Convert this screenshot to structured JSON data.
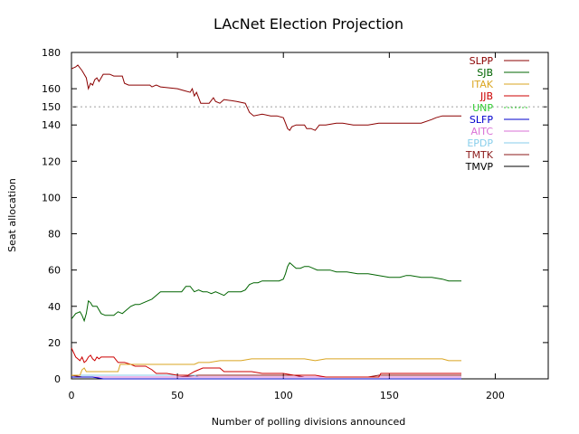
{
  "chart_data": {
    "type": "line",
    "title": "LAcNet Election Projection",
    "xlabel": "Number of polling divisions announced",
    "ylabel": "Seat allocation",
    "xlim": [
      0,
      225
    ],
    "ylim": [
      0,
      180
    ],
    "xticks": [
      0,
      50,
      100,
      150,
      200
    ],
    "yticks": [
      0,
      20,
      40,
      60,
      80,
      100,
      120,
      140,
      150,
      160,
      180
    ],
    "grid": false,
    "legend_position": "top-right",
    "reference_line": {
      "name": "UNP",
      "y": 150,
      "style": "dotted",
      "color": "#a0a0a0"
    },
    "series": [
      {
        "name": "SLPP",
        "color": "#8b0000",
        "points": [
          [
            0,
            171
          ],
          [
            2,
            172
          ],
          [
            3,
            173
          ],
          [
            5,
            170
          ],
          [
            7,
            166
          ],
          [
            8,
            160
          ],
          [
            9,
            163
          ],
          [
            10,
            162
          ],
          [
            11,
            165
          ],
          [
            12,
            166
          ],
          [
            13,
            164
          ],
          [
            14,
            166
          ],
          [
            15,
            168
          ],
          [
            18,
            168
          ],
          [
            20,
            167
          ],
          [
            24,
            167
          ],
          [
            25,
            163
          ],
          [
            27,
            162
          ],
          [
            37,
            162
          ],
          [
            38,
            161
          ],
          [
            40,
            162
          ],
          [
            42,
            161
          ],
          [
            50,
            160
          ],
          [
            53,
            159
          ],
          [
            56,
            158
          ],
          [
            57,
            160
          ],
          [
            58,
            156
          ],
          [
            59,
            158
          ],
          [
            61,
            152
          ],
          [
            65,
            152
          ],
          [
            67,
            155
          ],
          [
            68,
            153
          ],
          [
            70,
            152
          ],
          [
            72,
            154
          ],
          [
            78,
            153
          ],
          [
            82,
            152
          ],
          [
            84,
            147
          ],
          [
            86,
            145
          ],
          [
            90,
            146
          ],
          [
            94,
            145
          ],
          [
            97,
            145
          ],
          [
            100,
            144
          ],
          [
            101,
            141
          ],
          [
            102,
            138
          ],
          [
            103,
            137
          ],
          [
            104,
            139
          ],
          [
            106,
            140
          ],
          [
            108,
            140
          ],
          [
            110,
            140
          ],
          [
            111,
            138
          ],
          [
            113,
            138
          ],
          [
            115,
            137
          ],
          [
            117,
            140
          ],
          [
            120,
            140
          ],
          [
            125,
            141
          ],
          [
            128,
            141
          ],
          [
            133,
            140
          ],
          [
            135,
            140
          ],
          [
            140,
            140
          ],
          [
            145,
            141
          ],
          [
            150,
            141
          ],
          [
            160,
            141
          ],
          [
            165,
            141
          ],
          [
            170,
            143
          ],
          [
            172,
            144
          ],
          [
            175,
            145
          ],
          [
            180,
            145
          ],
          [
            184,
            145
          ]
        ]
      },
      {
        "name": "SJB",
        "color": "#006400",
        "points": [
          [
            0,
            33
          ],
          [
            2,
            36
          ],
          [
            4,
            37
          ],
          [
            5,
            35
          ],
          [
            6,
            32
          ],
          [
            7,
            36
          ],
          [
            8,
            43
          ],
          [
            9,
            42
          ],
          [
            10,
            40
          ],
          [
            12,
            40
          ],
          [
            14,
            36
          ],
          [
            16,
            35
          ],
          [
            18,
            35
          ],
          [
            20,
            35
          ],
          [
            22,
            37
          ],
          [
            24,
            36
          ],
          [
            26,
            38
          ],
          [
            28,
            40
          ],
          [
            30,
            41
          ],
          [
            32,
            41
          ],
          [
            34,
            42
          ],
          [
            36,
            43
          ],
          [
            38,
            44
          ],
          [
            40,
            46
          ],
          [
            42,
            48
          ],
          [
            45,
            48
          ],
          [
            48,
            48
          ],
          [
            50,
            48
          ],
          [
            52,
            48
          ],
          [
            54,
            51
          ],
          [
            56,
            51
          ],
          [
            58,
            48
          ],
          [
            60,
            49
          ],
          [
            62,
            48
          ],
          [
            64,
            48
          ],
          [
            66,
            47
          ],
          [
            68,
            48
          ],
          [
            70,
            47
          ],
          [
            72,
            46
          ],
          [
            74,
            48
          ],
          [
            76,
            48
          ],
          [
            78,
            48
          ],
          [
            80,
            48
          ],
          [
            82,
            49
          ],
          [
            84,
            52
          ],
          [
            86,
            53
          ],
          [
            88,
            53
          ],
          [
            90,
            54
          ],
          [
            93,
            54
          ],
          [
            95,
            54
          ],
          [
            98,
            54
          ],
          [
            100,
            55
          ],
          [
            101,
            58
          ],
          [
            102,
            62
          ],
          [
            103,
            64
          ],
          [
            104,
            63
          ],
          [
            105,
            62
          ],
          [
            106,
            61
          ],
          [
            108,
            61
          ],
          [
            110,
            62
          ],
          [
            112,
            62
          ],
          [
            114,
            61
          ],
          [
            116,
            60
          ],
          [
            120,
            60
          ],
          [
            122,
            60
          ],
          [
            125,
            59
          ],
          [
            130,
            59
          ],
          [
            135,
            58
          ],
          [
            140,
            58
          ],
          [
            145,
            57
          ],
          [
            150,
            56
          ],
          [
            155,
            56
          ],
          [
            158,
            57
          ],
          [
            160,
            57
          ],
          [
            165,
            56
          ],
          [
            170,
            56
          ],
          [
            175,
            55
          ],
          [
            178,
            54
          ],
          [
            182,
            54
          ],
          [
            184,
            54
          ]
        ]
      },
      {
        "name": "ITAK",
        "color": "#daa520",
        "points": [
          [
            0,
            2
          ],
          [
            4,
            2
          ],
          [
            5,
            5
          ],
          [
            6,
            6
          ],
          [
            7,
            4
          ],
          [
            10,
            4
          ],
          [
            15,
            4
          ],
          [
            20,
            4
          ],
          [
            22,
            4
          ],
          [
            23,
            8
          ],
          [
            25,
            8
          ],
          [
            30,
            8
          ],
          [
            35,
            8
          ],
          [
            40,
            8
          ],
          [
            45,
            8
          ],
          [
            50,
            8
          ],
          [
            58,
            8
          ],
          [
            60,
            9
          ],
          [
            65,
            9
          ],
          [
            70,
            10
          ],
          [
            75,
            10
          ],
          [
            80,
            10
          ],
          [
            85,
            11
          ],
          [
            90,
            11
          ],
          [
            95,
            11
          ],
          [
            100,
            11
          ],
          [
            105,
            11
          ],
          [
            110,
            11
          ],
          [
            115,
            10
          ],
          [
            120,
            11
          ],
          [
            125,
            11
          ],
          [
            130,
            11
          ],
          [
            140,
            11
          ],
          [
            150,
            11
          ],
          [
            160,
            11
          ],
          [
            170,
            11
          ],
          [
            175,
            11
          ],
          [
            178,
            10
          ],
          [
            184,
            10
          ]
        ]
      },
      {
        "name": "JJB",
        "color": "#cc0000",
        "points": [
          [
            0,
            17
          ],
          [
            2,
            12
          ],
          [
            4,
            10
          ],
          [
            5,
            12
          ],
          [
            6,
            9
          ],
          [
            7,
            10
          ],
          [
            8,
            12
          ],
          [
            9,
            13
          ],
          [
            10,
            11
          ],
          [
            11,
            10
          ],
          [
            12,
            12
          ],
          [
            13,
            11
          ],
          [
            14,
            12
          ],
          [
            15,
            12
          ],
          [
            20,
            12
          ],
          [
            22,
            9
          ],
          [
            25,
            9
          ],
          [
            28,
            8
          ],
          [
            30,
            7
          ],
          [
            35,
            7
          ],
          [
            38,
            5
          ],
          [
            40,
            3
          ],
          [
            45,
            3
          ],
          [
            50,
            2
          ],
          [
            55,
            2
          ],
          [
            58,
            4
          ],
          [
            60,
            5
          ],
          [
            62,
            6
          ],
          [
            65,
            6
          ],
          [
            70,
            6
          ],
          [
            72,
            4
          ],
          [
            75,
            4
          ],
          [
            80,
            4
          ],
          [
            85,
            4
          ],
          [
            90,
            3
          ],
          [
            95,
            3
          ],
          [
            100,
            3
          ],
          [
            105,
            2
          ],
          [
            110,
            2
          ],
          [
            115,
            2
          ],
          [
            120,
            1
          ],
          [
            130,
            1
          ],
          [
            140,
            1
          ],
          [
            145,
            1
          ],
          [
            146,
            3
          ],
          [
            150,
            3
          ],
          [
            155,
            3
          ],
          [
            160,
            3
          ],
          [
            165,
            3
          ],
          [
            170,
            3
          ],
          [
            175,
            3
          ],
          [
            180,
            3
          ],
          [
            184,
            3
          ]
        ]
      },
      {
        "name": "SLFP",
        "color": "#0000cd",
        "points": [
          [
            0,
            1
          ],
          [
            5,
            1
          ],
          [
            10,
            1
          ],
          [
            15,
            0
          ],
          [
            40,
            0
          ],
          [
            45,
            0
          ],
          [
            60,
            0
          ],
          [
            100,
            0
          ],
          [
            150,
            0
          ],
          [
            184,
            0
          ]
        ]
      },
      {
        "name": "AITC",
        "color": "#da70d6",
        "points": [
          [
            0,
            1
          ],
          [
            10,
            1
          ],
          [
            20,
            1
          ],
          [
            30,
            1
          ],
          [
            40,
            1
          ],
          [
            50,
            1
          ],
          [
            60,
            1
          ],
          [
            70,
            1
          ],
          [
            80,
            1
          ],
          [
            90,
            1
          ],
          [
            100,
            1
          ],
          [
            110,
            1
          ],
          [
            120,
            1
          ],
          [
            130,
            1
          ],
          [
            140,
            1
          ],
          [
            150,
            1
          ],
          [
            160,
            1
          ],
          [
            170,
            1
          ],
          [
            184,
            1
          ]
        ]
      },
      {
        "name": "EPDP",
        "color": "#87ceeb",
        "points": [
          [
            0,
            2
          ],
          [
            10,
            2
          ],
          [
            20,
            2
          ],
          [
            30,
            2
          ],
          [
            40,
            2
          ],
          [
            50,
            2
          ],
          [
            58,
            2
          ],
          [
            60,
            1
          ],
          [
            70,
            1
          ],
          [
            80,
            1
          ],
          [
            90,
            1
          ],
          [
            100,
            1
          ],
          [
            110,
            1
          ],
          [
            120,
            1
          ],
          [
            130,
            1
          ],
          [
            140,
            1
          ],
          [
            150,
            1
          ],
          [
            160,
            1
          ],
          [
            170,
            1
          ],
          [
            184,
            1
          ]
        ]
      },
      {
        "name": "TMTK",
        "color": "#8b1a1a",
        "points": [
          [
            0,
            2
          ],
          [
            5,
            1
          ],
          [
            10,
            1
          ],
          [
            20,
            1
          ],
          [
            30,
            1
          ],
          [
            40,
            1
          ],
          [
            50,
            1
          ],
          [
            60,
            2
          ],
          [
            70,
            2
          ],
          [
            80,
            2
          ],
          [
            90,
            2
          ],
          [
            100,
            2
          ],
          [
            105,
            2
          ],
          [
            110,
            1
          ],
          [
            120,
            1
          ],
          [
            130,
            1
          ],
          [
            140,
            1
          ],
          [
            145,
            2
          ],
          [
            150,
            2
          ],
          [
            160,
            2
          ],
          [
            170,
            2
          ],
          [
            184,
            2
          ]
        ]
      },
      {
        "name": "TMVP",
        "color": "#000000",
        "points": [
          [
            0,
            0
          ],
          [
            20,
            0
          ],
          [
            40,
            0
          ],
          [
            60,
            0
          ],
          [
            80,
            0
          ],
          [
            100,
            0
          ],
          [
            120,
            0
          ],
          [
            140,
            0
          ],
          [
            160,
            0
          ],
          [
            184,
            0
          ]
        ]
      }
    ],
    "legend_order": [
      "SLPP",
      "SJB",
      "ITAK",
      "JJB",
      "UNP",
      "SLFP",
      "AITC",
      "EPDP",
      "TMTK",
      "TMVP"
    ],
    "legend_colors": {
      "SLPP": "#8b0000",
      "SJB": "#006400",
      "ITAK": "#daa520",
      "JJB": "#cc0000",
      "UNP": "#32cd32",
      "SLFP": "#0000cd",
      "AITC": "#da70d6",
      "EPDP": "#87ceeb",
      "TMTK": "#8b1a1a",
      "TMVP": "#000000"
    }
  }
}
